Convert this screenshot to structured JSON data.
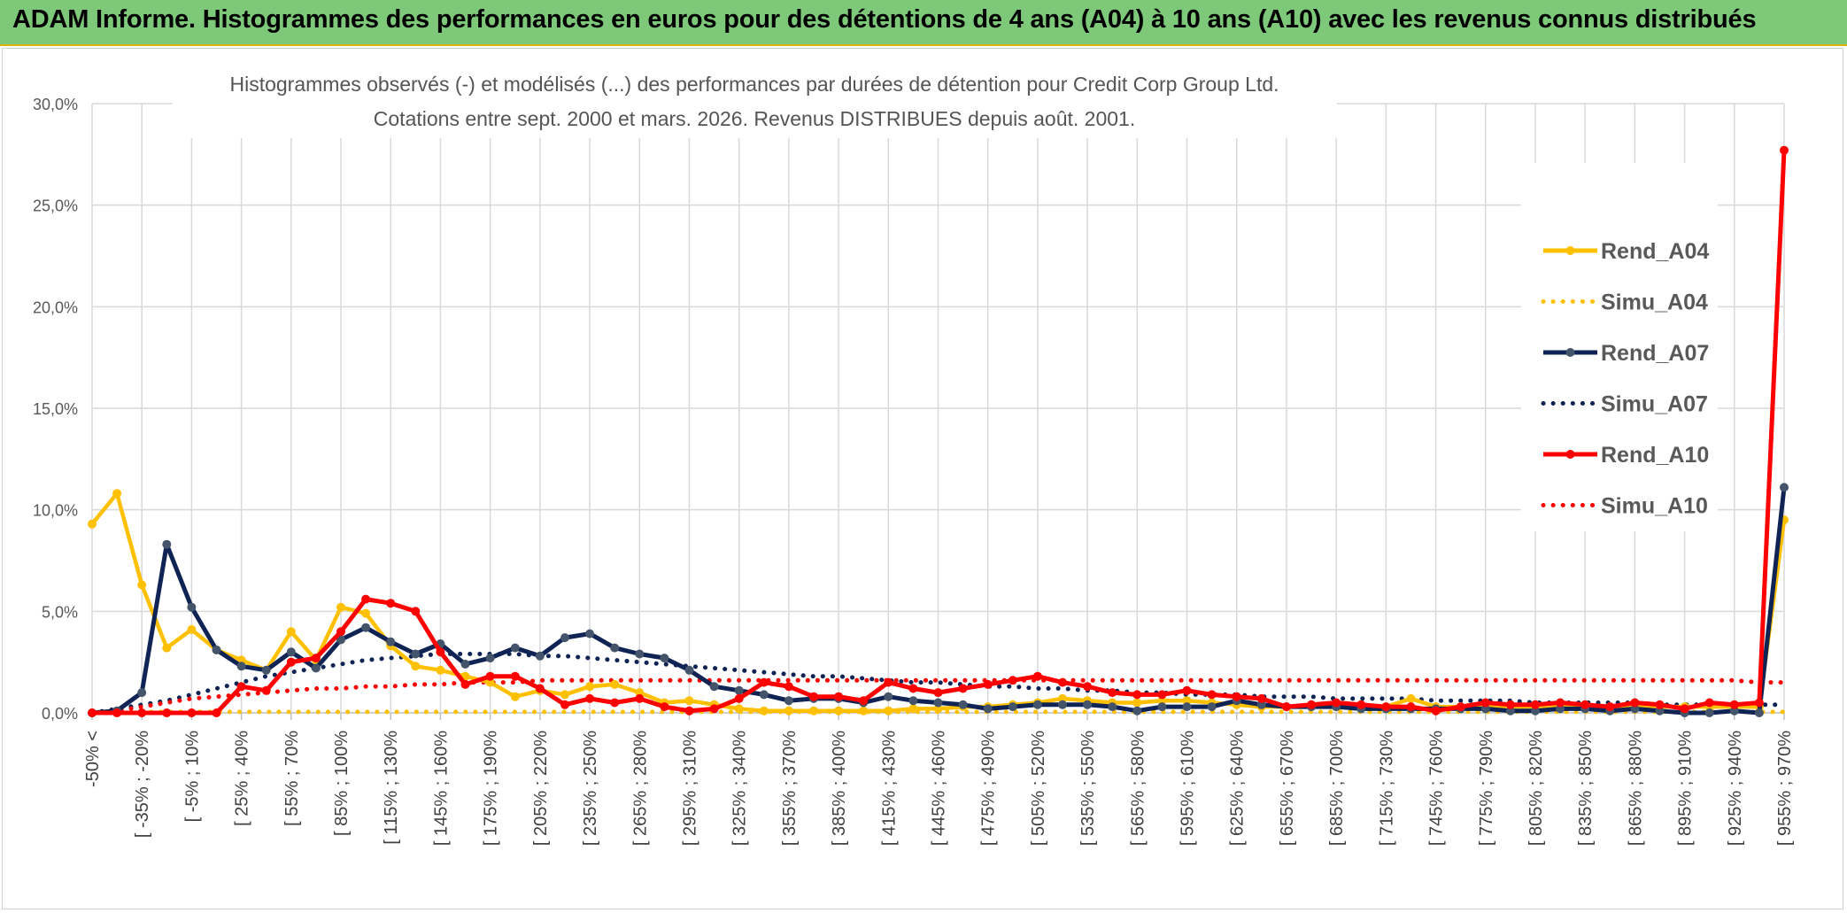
{
  "banner": {
    "title": "ADAM Informe. Histogrammes des performances en euros pour des détentions de 4 ans (A04) à 10 ans (A10) avec les revenus connus distribués",
    "color": "#7ec87a"
  },
  "chart_data": {
    "type": "line",
    "title": "Histogrammes observés (-) et modélisés (...) des performances par durées de détention pour Credit Corp Group Ltd.",
    "subtitle": "Cotations entre sept. 2000 et mars. 2026. Revenus DISTRIBUES depuis août. 2001.",
    "ylim": [
      0,
      30
    ],
    "yticks": [
      "0,0%",
      "5,0%",
      "10,0%",
      "15,0%",
      "20,0%",
      "25,0%",
      "30,0%"
    ],
    "grid": true,
    "legend_position": "right",
    "x_tick_labels": [
      "-50% <",
      "[ -35% ; -20%",
      "[ -5% ; 10%",
      "[ 25% ; 40%",
      "[ 55% ; 70%",
      "[ 85% ; 100%",
      "[ 115% ; 130%",
      "[ 145% ; 160%",
      "[ 175% ; 190%",
      "[ 205% ; 220%",
      "[ 235% ; 250%",
      "[ 265% ; 280%",
      "[ 295% ; 310%",
      "[ 325% ; 340%",
      "[ 355% ; 370%",
      "[ 385% ; 400%",
      "[ 415% ; 430%",
      "[ 445% ; 460%",
      "[ 475% ; 490%",
      "[ 505% ; 520%",
      "[ 535% ; 550%",
      "[ 565% ; 580%",
      "[ 595% ; 610%",
      "[ 625% ; 640%",
      "[ 655% ; 670%",
      "[ 685% ; 700%",
      "[ 715% ; 730%",
      "[ 745% ; 760%",
      "[ 775% ; 790%",
      "[ 805% ; 820%",
      "[ 835% ; 850%",
      "[ 865% ; 880%",
      "[ 895% ; 910%",
      "[ 925% ; 940%",
      "[ 955% ; 970%"
    ],
    "n_bins": 69,
    "series": [
      {
        "name": "Rend_A04",
        "style": "solid",
        "color": "#ffc000",
        "values": [
          9.3,
          10.8,
          6.3,
          3.2,
          4.1,
          3.1,
          2.6,
          2.1,
          4.0,
          2.6,
          5.2,
          4.9,
          3.3,
          2.3,
          2.1,
          1.8,
          1.5,
          0.8,
          1.1,
          0.9,
          1.3,
          1.4,
          1.0,
          0.5,
          0.6,
          0.4,
          0.2,
          0.1,
          0.1,
          0.1,
          0.1,
          0.1,
          0.1,
          0.2,
          0.2,
          0.3,
          0.3,
          0.4,
          0.5,
          0.7,
          0.6,
          0.5,
          0.5,
          0.6,
          0.6,
          0.5,
          0.4,
          0.3,
          0.3,
          0.3,
          0.3,
          0.3,
          0.3,
          0.7,
          0.3,
          0.3,
          0.3,
          0.3,
          0.3,
          0.3,
          0.3,
          0.3,
          0.3,
          0.3,
          0.3,
          0.3,
          0.3,
          0.3,
          9.5
        ]
      },
      {
        "name": "Simu_A04",
        "style": "dotted",
        "color": "#ffc000",
        "values": [
          0.05,
          0.05,
          0.05,
          0.05,
          0.05,
          0.05,
          0.05,
          0.05,
          0.05,
          0.05,
          0.05,
          0.05,
          0.05,
          0.05,
          0.05,
          0.05,
          0.05,
          0.05,
          0.05,
          0.05,
          0.05,
          0.05,
          0.05,
          0.05,
          0.05,
          0.05,
          0.05,
          0.05,
          0.05,
          0.05,
          0.05,
          0.05,
          0.05,
          0.05,
          0.05,
          0.05,
          0.05,
          0.05,
          0.05,
          0.05,
          0.05,
          0.05,
          0.05,
          0.05,
          0.05,
          0.05,
          0.05,
          0.05,
          0.05,
          0.05,
          0.05,
          0.05,
          0.05,
          0.05,
          0.05,
          0.05,
          0.05,
          0.05,
          0.05,
          0.05,
          0.05,
          0.05,
          0.05,
          0.05,
          0.05,
          0.05,
          0.05,
          0.05,
          0.05
        ]
      },
      {
        "name": "Rend_A07",
        "style": "solid",
        "color": "#0f2354",
        "values": [
          0.0,
          0.1,
          1.0,
          8.3,
          5.2,
          3.1,
          2.3,
          2.1,
          3.0,
          2.2,
          3.6,
          4.2,
          3.5,
          2.9,
          3.4,
          2.4,
          2.7,
          3.2,
          2.8,
          3.7,
          3.9,
          3.2,
          2.9,
          2.7,
          2.1,
          1.3,
          1.1,
          0.9,
          0.6,
          0.7,
          0.7,
          0.5,
          0.8,
          0.6,
          0.5,
          0.4,
          0.2,
          0.3,
          0.4,
          0.4,
          0.4,
          0.3,
          0.1,
          0.3,
          0.3,
          0.3,
          0.6,
          0.4,
          0.3,
          0.3,
          0.3,
          0.2,
          0.2,
          0.2,
          0.2,
          0.2,
          0.2,
          0.1,
          0.1,
          0.2,
          0.2,
          0.1,
          0.2,
          0.1,
          0.0,
          0.0,
          0.1,
          0.0,
          11.1
        ]
      },
      {
        "name": "Simu_A07",
        "style": "dotted",
        "color": "#0f2354",
        "values": [
          0.0,
          0.2,
          0.4,
          0.6,
          0.9,
          1.2,
          1.5,
          1.8,
          2.0,
          2.2,
          2.4,
          2.6,
          2.7,
          2.8,
          2.9,
          2.9,
          2.9,
          2.9,
          2.8,
          2.8,
          2.7,
          2.6,
          2.5,
          2.4,
          2.3,
          2.2,
          2.1,
          2.0,
          1.9,
          1.8,
          1.8,
          1.7,
          1.6,
          1.5,
          1.5,
          1.4,
          1.3,
          1.3,
          1.2,
          1.2,
          1.1,
          1.1,
          1.0,
          1.0,
          0.9,
          0.9,
          0.9,
          0.8,
          0.8,
          0.8,
          0.7,
          0.7,
          0.7,
          0.7,
          0.6,
          0.6,
          0.6,
          0.6,
          0.5,
          0.5,
          0.5,
          0.5,
          0.5,
          0.4,
          0.4,
          0.4,
          0.4,
          0.4,
          0.4
        ]
      },
      {
        "name": "Rend_A10",
        "style": "solid",
        "color": "#ff0000",
        "values": [
          0.0,
          0.0,
          0.0,
          0.0,
          0.0,
          0.0,
          1.3,
          1.1,
          2.5,
          2.7,
          4.0,
          5.6,
          5.4,
          5.0,
          3.0,
          1.4,
          1.8,
          1.8,
          1.2,
          0.4,
          0.7,
          0.5,
          0.7,
          0.3,
          0.1,
          0.2,
          0.7,
          1.5,
          1.3,
          0.8,
          0.8,
          0.6,
          1.5,
          1.2,
          1.0,
          1.2,
          1.4,
          1.6,
          1.8,
          1.5,
          1.3,
          1.0,
          0.9,
          0.9,
          1.1,
          0.9,
          0.8,
          0.7,
          0.3,
          0.4,
          0.5,
          0.4,
          0.3,
          0.3,
          0.1,
          0.3,
          0.5,
          0.4,
          0.4,
          0.5,
          0.4,
          0.3,
          0.5,
          0.4,
          0.2,
          0.5,
          0.4,
          0.5,
          27.7
        ]
      },
      {
        "name": "Simu_A10",
        "style": "dotted",
        "color": "#ff0000",
        "values": [
          0.0,
          0.1,
          0.3,
          0.5,
          0.7,
          0.8,
          0.9,
          1.0,
          1.1,
          1.2,
          1.2,
          1.3,
          1.3,
          1.4,
          1.4,
          1.5,
          1.5,
          1.5,
          1.6,
          1.6,
          1.6,
          1.6,
          1.6,
          1.6,
          1.6,
          1.6,
          1.6,
          1.6,
          1.6,
          1.6,
          1.6,
          1.6,
          1.6,
          1.6,
          1.6,
          1.6,
          1.6,
          1.6,
          1.6,
          1.6,
          1.6,
          1.6,
          1.6,
          1.6,
          1.6,
          1.6,
          1.6,
          1.6,
          1.6,
          1.6,
          1.6,
          1.6,
          1.6,
          1.6,
          1.6,
          1.6,
          1.6,
          1.6,
          1.6,
          1.6,
          1.6,
          1.6,
          1.6,
          1.6,
          1.6,
          1.6,
          1.6,
          1.5,
          1.5
        ]
      }
    ]
  }
}
